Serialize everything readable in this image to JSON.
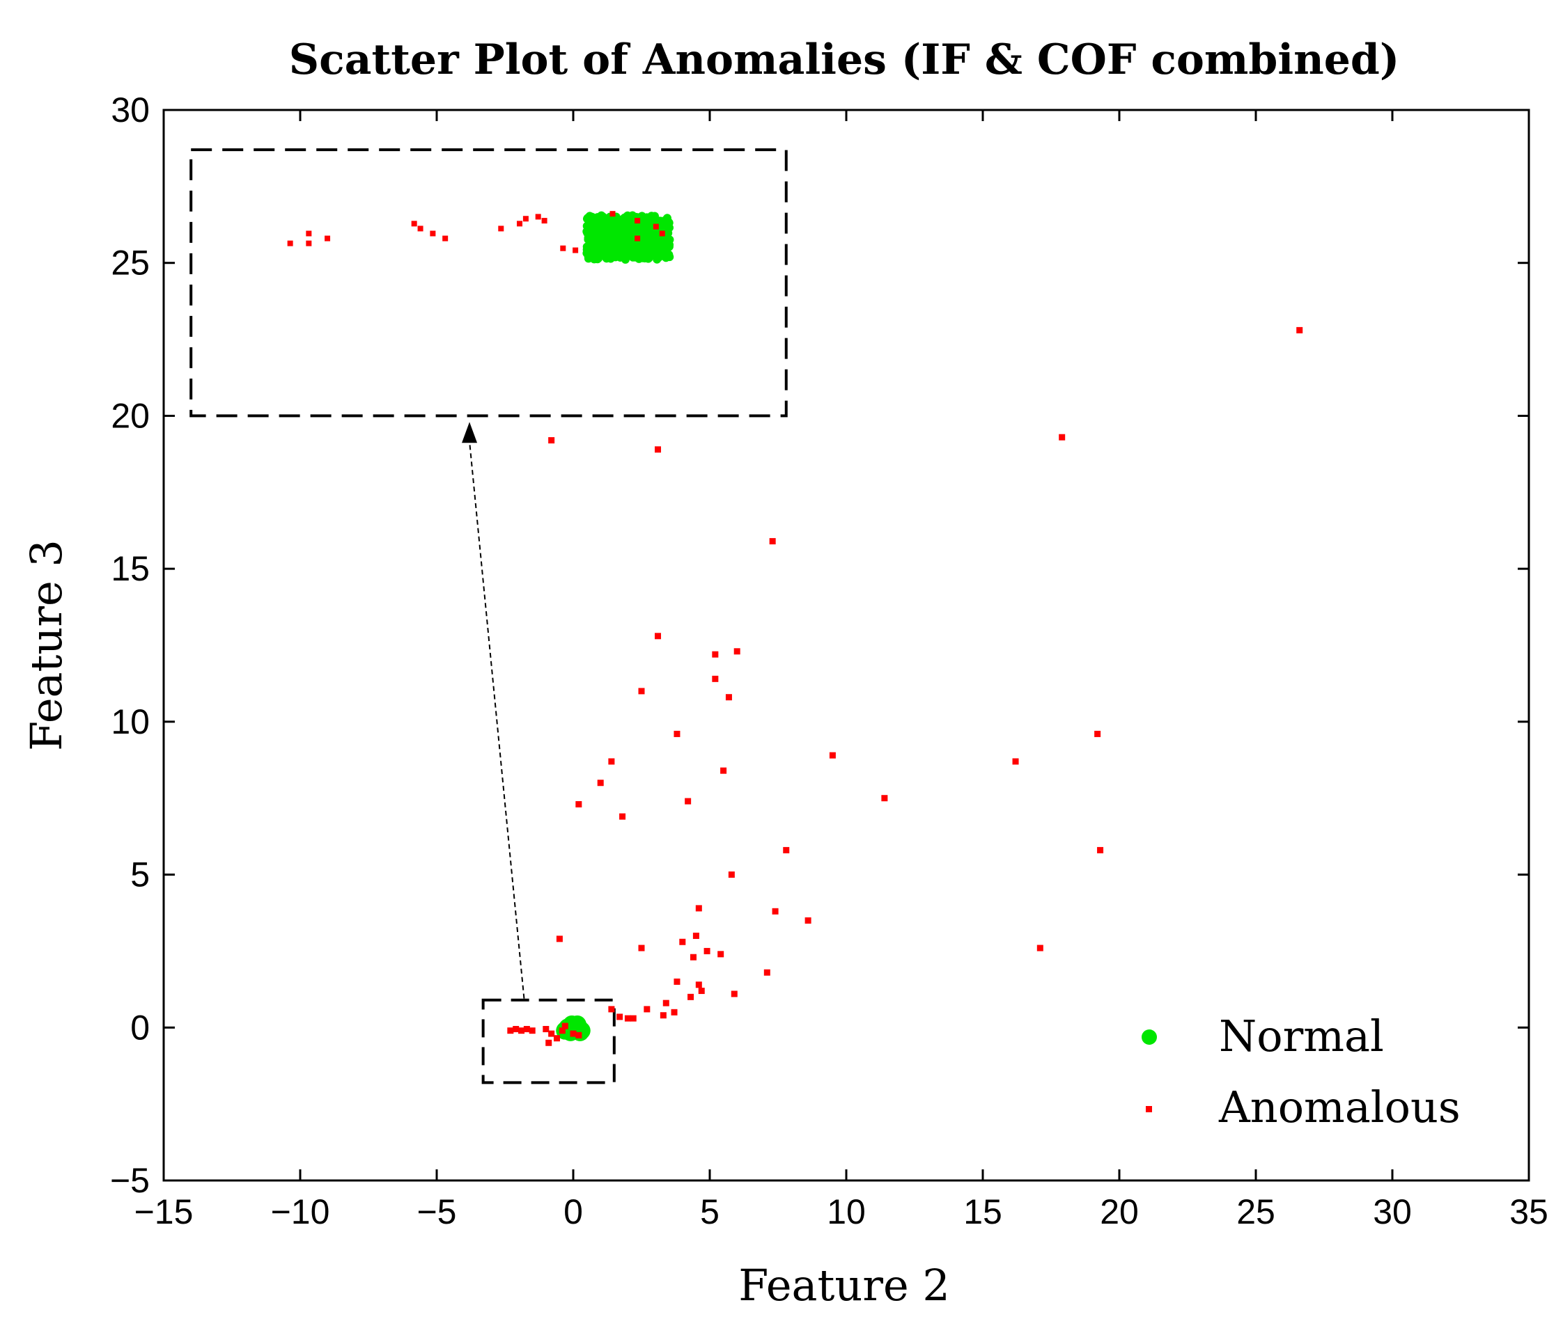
{
  "chart_data": {
    "type": "scatter",
    "title": "Scatter Plot of Anomalies (IF & COF combined)",
    "xlabel": "Feature 2",
    "ylabel": "Feature 3",
    "xlim": [
      -15,
      35
    ],
    "ylim": [
      -5,
      30
    ],
    "xticks": [
      -15,
      -10,
      -5,
      0,
      5,
      10,
      15,
      20,
      25,
      30,
      35
    ],
    "yticks": [
      -5,
      0,
      5,
      10,
      15,
      20,
      25,
      30
    ],
    "xtick_labels": [
      "−15",
      "−10",
      "−5",
      "0",
      "5",
      "10",
      "15",
      "20",
      "25",
      "30",
      "35"
    ],
    "ytick_labels": [
      "−5",
      "0",
      "5",
      "10",
      "15",
      "20",
      "25",
      "30"
    ],
    "legend_position": "bottom-right",
    "colors": {
      "normal": "#00e600",
      "anomalous": "#ff0000"
    },
    "series": [
      {
        "name": "Normal",
        "marker": "circle",
        "color": "#00e600",
        "points": [
          [
            -0.3,
            -0.1
          ],
          [
            -0.2,
            0.0
          ],
          [
            -0.1,
            -0.15
          ],
          [
            0.0,
            0.05
          ],
          [
            0.1,
            -0.05
          ],
          [
            0.2,
            0.0
          ],
          [
            0.3,
            -0.1
          ],
          [
            0.15,
            0.1
          ],
          [
            -0.05,
            0.1
          ],
          [
            0.25,
            -0.15
          ]
        ]
      },
      {
        "name": "Anomalous",
        "marker": "square",
        "color": "#ff0000",
        "points": [
          [
            26.6,
            22.8
          ],
          [
            17.9,
            19.3
          ],
          [
            -0.8,
            19.2
          ],
          [
            3.1,
            18.9
          ],
          [
            7.3,
            15.9
          ],
          [
            3.1,
            12.8
          ],
          [
            5.2,
            12.2
          ],
          [
            6.0,
            12.3
          ],
          [
            2.5,
            11.0
          ],
          [
            5.2,
            11.4
          ],
          [
            5.7,
            10.8
          ],
          [
            3.8,
            9.6
          ],
          [
            9.5,
            8.9
          ],
          [
            19.2,
            9.6
          ],
          [
            1.4,
            8.7
          ],
          [
            16.2,
            8.7
          ],
          [
            5.5,
            8.4
          ],
          [
            1.0,
            8.0
          ],
          [
            0.2,
            7.3
          ],
          [
            4.2,
            7.4
          ],
          [
            11.4,
            7.5
          ],
          [
            1.8,
            6.9
          ],
          [
            7.8,
            5.8
          ],
          [
            19.3,
            5.8
          ],
          [
            5.8,
            5.0
          ],
          [
            4.6,
            3.9
          ],
          [
            7.4,
            3.8
          ],
          [
            8.6,
            3.5
          ],
          [
            -0.5,
            2.9
          ],
          [
            4.5,
            3.0
          ],
          [
            4.0,
            2.8
          ],
          [
            2.5,
            2.6
          ],
          [
            4.9,
            2.5
          ],
          [
            5.4,
            2.4
          ],
          [
            4.4,
            2.3
          ],
          [
            17.1,
            2.6
          ],
          [
            7.1,
            1.8
          ],
          [
            3.8,
            1.5
          ],
          [
            4.6,
            1.4
          ],
          [
            4.3,
            1.0
          ],
          [
            4.7,
            1.2
          ],
          [
            5.9,
            1.1
          ],
          [
            3.4,
            0.8
          ],
          [
            2.7,
            0.6
          ],
          [
            3.3,
            0.4
          ],
          [
            3.7,
            0.5
          ],
          [
            1.4,
            0.6
          ],
          [
            1.7,
            0.35
          ],
          [
            2.2,
            0.3
          ],
          [
            2.0,
            0.3
          ],
          [
            -2.3,
            -0.1
          ],
          [
            -2.1,
            -0.05
          ],
          [
            -1.9,
            -0.1
          ],
          [
            -1.7,
            -0.05
          ],
          [
            -1.5,
            -0.1
          ],
          [
            -1.0,
            -0.05
          ],
          [
            -0.8,
            -0.2
          ],
          [
            -0.6,
            -0.35
          ],
          [
            -0.9,
            -0.5
          ],
          [
            -0.4,
            -0.1
          ],
          [
            -0.3,
            0.05
          ],
          [
            0.0,
            -0.2
          ],
          [
            0.2,
            -0.25
          ]
        ]
      }
    ],
    "annotations": {
      "inset": {
        "source_region": {
          "x": [
            -3.3,
            1.5
          ],
          "y": [
            -1.8,
            0.9
          ]
        },
        "display_region": {
          "x": [
            -14.0,
            7.8
          ],
          "y": [
            20.0,
            28.7
          ]
        },
        "inner_xlim": [
          -3.3,
          1.5
        ],
        "inner_ylim": [
          -1.8,
          0.9
        ],
        "arrow_from": [
          -1.8,
          0.95
        ],
        "arrow_to": [
          -3.8,
          19.8
        ],
        "normal_cluster": {
          "x": [
            -0.1,
            0.55
          ],
          "y": [
            -0.2,
            0.22
          ]
        },
        "anomalous_points": [
          [
            -2.5,
            -0.05
          ],
          [
            -2.35,
            -0.05
          ],
          [
            -2.2,
            0.0
          ],
          [
            -2.35,
            0.05
          ],
          [
            -1.5,
            0.15
          ],
          [
            -1.45,
            0.1
          ],
          [
            -1.35,
            0.05
          ],
          [
            -1.25,
            0.0
          ],
          [
            -0.8,
            0.1
          ],
          [
            -0.65,
            0.15
          ],
          [
            -0.6,
            0.2
          ],
          [
            -0.5,
            0.22
          ],
          [
            -0.45,
            0.18
          ],
          [
            -0.3,
            -0.1
          ],
          [
            -0.2,
            -0.12
          ],
          [
            0.1,
            0.25
          ],
          [
            0.3,
            0.0
          ],
          [
            0.3,
            0.18
          ],
          [
            0.45,
            0.12
          ],
          [
            0.5,
            0.05
          ]
        ]
      }
    }
  }
}
